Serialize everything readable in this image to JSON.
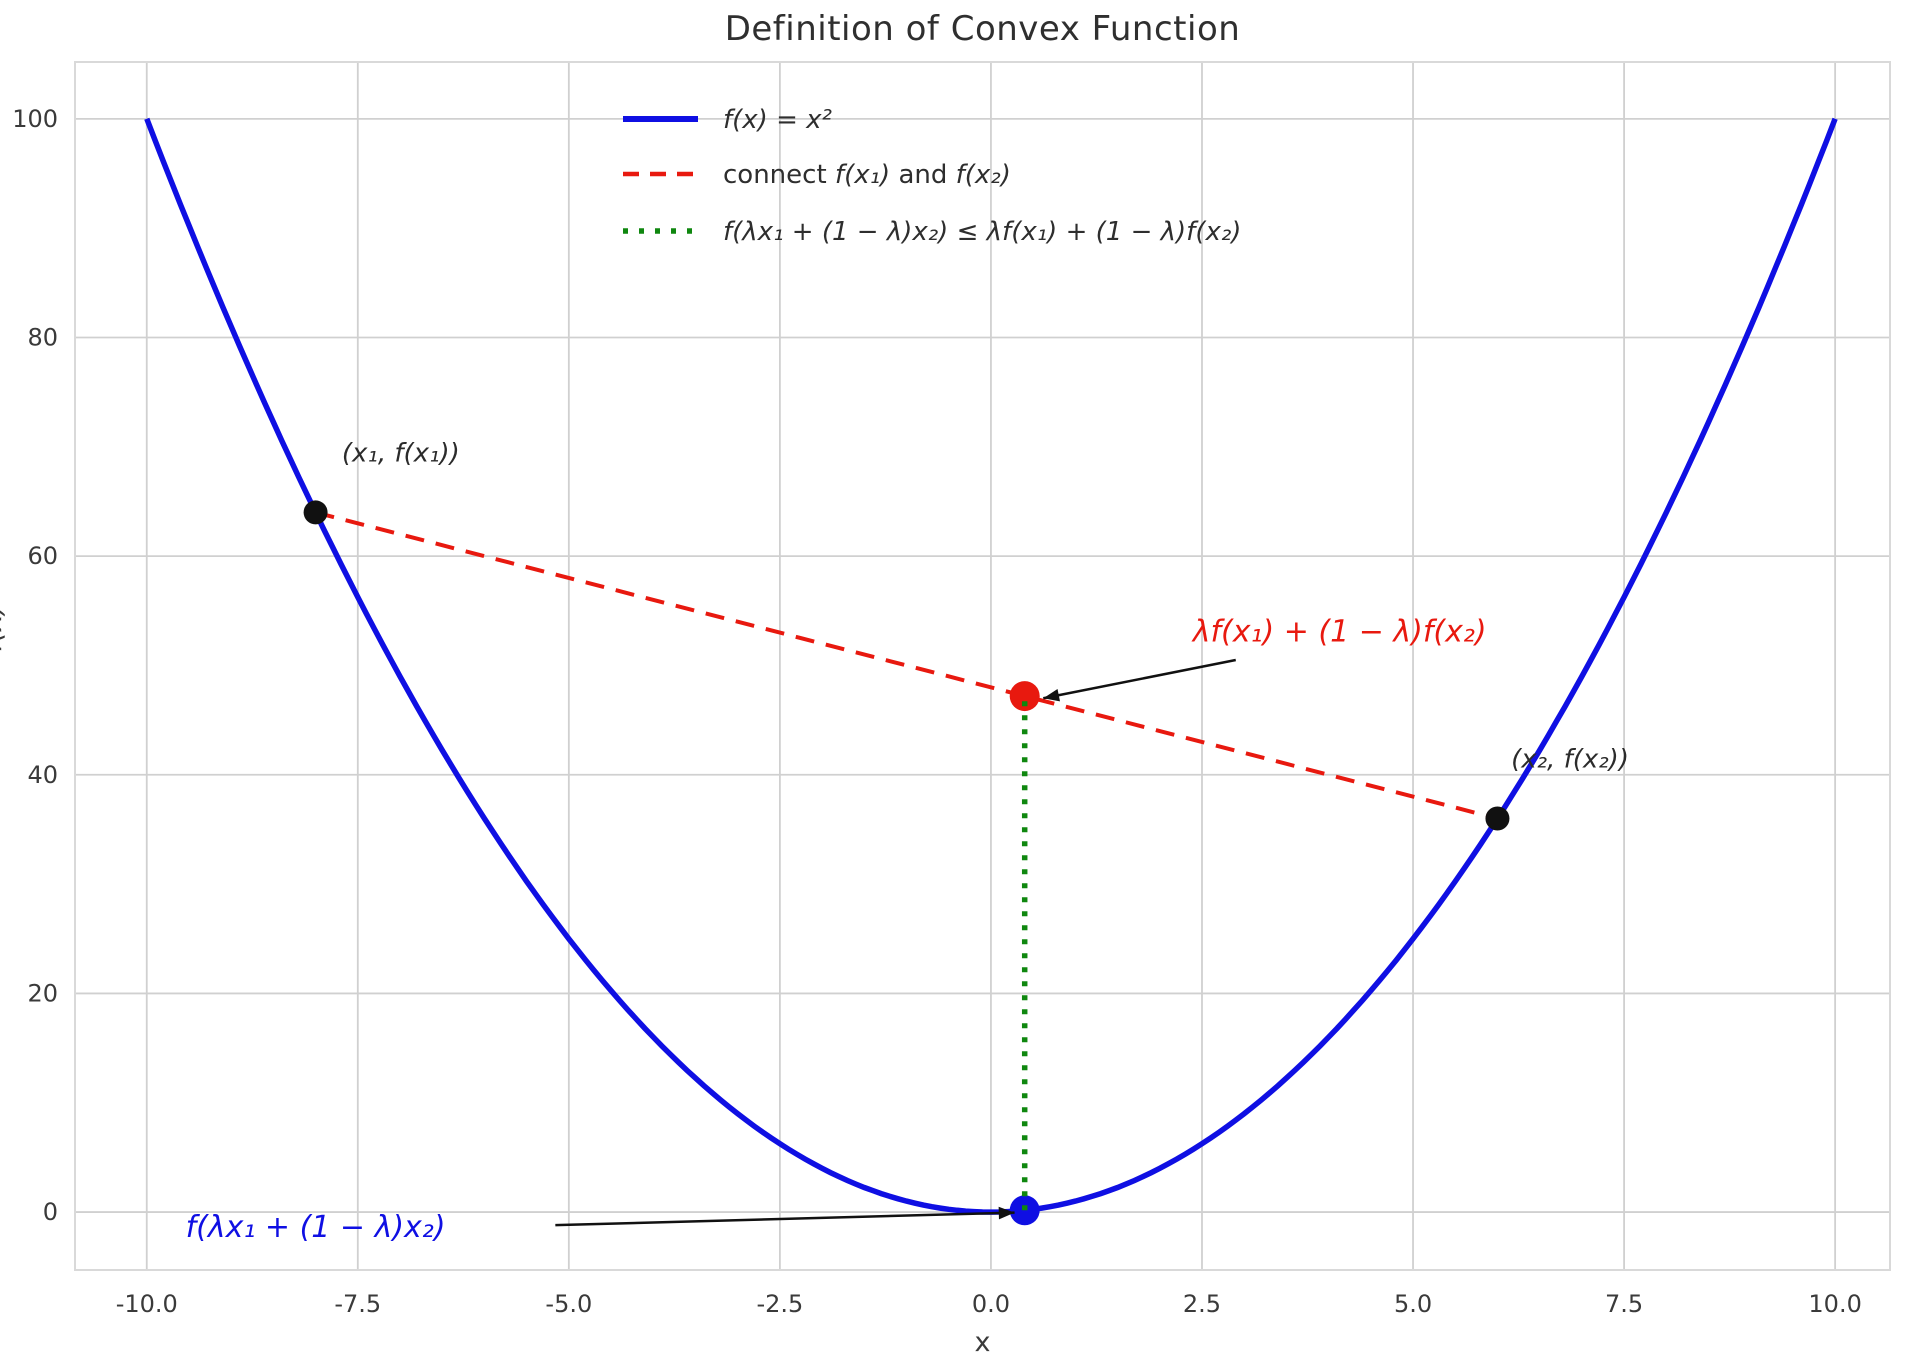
{
  "figure": {
    "title": "Definition of Convex Function",
    "bg_color": "#ffffff",
    "text_color": "#2e2e2e",
    "tick_color": "#3a3a3a",
    "grid_color": "#d0d0d0",
    "spine_color": "#d9d9d9",
    "arrow_color": "#111111"
  },
  "chart_data": {
    "type": "line",
    "title": "Definition of Convex Function",
    "xlabel": "x",
    "ylabel": "f(x)",
    "xlim": [
      -10.85,
      10.65
    ],
    "ylim": [
      -5.3,
      105.2
    ],
    "grid": true,
    "x_ticks": [
      "-10.0",
      "-7.5",
      "-5.0",
      "-2.5",
      "0.0",
      "2.5",
      "5.0",
      "7.5",
      "10.0"
    ],
    "x_tick_values": [
      -10,
      -7.5,
      -5,
      -2.5,
      0,
      2.5,
      5,
      7.5,
      10
    ],
    "y_ticks": [
      "0",
      "20",
      "40",
      "60",
      "80",
      "100"
    ],
    "y_tick_values": [
      0,
      20,
      40,
      60,
      80,
      100
    ],
    "legend_position": "upper center",
    "legend": [
      {
        "label": "f(x) = x²",
        "color": "#0f0fe3",
        "style": "solid"
      },
      {
        "label": "connect f(x₁) and f(x₂)",
        "color": "#e8190f",
        "style": "dashed"
      },
      {
        "label": "f(λx₁ + (1 − λ)x₂) ≤ λf(x₁) + (1 − λ)f(x₂)",
        "color": "#0f870f",
        "style": "dotted"
      }
    ],
    "series": [
      {
        "name": "parabola",
        "formula": "f(x) = x²",
        "x_min": -10,
        "x_max": 10,
        "color": "#0f0fe3",
        "style": "solid"
      },
      {
        "name": "chord",
        "points": [
          [
            -8,
            64
          ],
          [
            6,
            36
          ]
        ],
        "color": "#e8190f",
        "style": "dashed"
      },
      {
        "name": "convexity-gap",
        "points": [
          [
            0.4,
            0.16
          ],
          [
            0.4,
            47.2
          ]
        ],
        "color": "#0f870f",
        "style": "dotted"
      }
    ],
    "markers": [
      {
        "name": "point-x1",
        "x": -8,
        "y": 64,
        "color": "#111111"
      },
      {
        "name": "point-x2",
        "x": 6,
        "y": 36,
        "color": "#111111"
      },
      {
        "name": "point-on-chord",
        "x": 0.4,
        "y": 47.2,
        "color": "#e8190f"
      },
      {
        "name": "point-on-curve",
        "x": 0.4,
        "y": 0.16,
        "color": "#0f0fe3"
      }
    ],
    "annotations": [
      {
        "name": "label-x1",
        "text": "(x₁, f(x₁))",
        "x": -6.99,
        "y": 69.5,
        "color": "#2b2b2b",
        "anchor": "middle"
      },
      {
        "name": "label-x2",
        "text": "(x₂, f(x₂))",
        "x": 6.86,
        "y": 41.5,
        "color": "#2b2b2b",
        "anchor": "middle"
      },
      {
        "name": "label-chord-value",
        "text": "λf(x₁) + (1 − λ)f(x₂)",
        "x": 2.39,
        "y": 53.0,
        "color": "#e8190f",
        "anchor": "start",
        "arrow": {
          "from": [
            2.9,
            50.5
          ],
          "to": [
            0.62,
            47.0
          ]
        }
      },
      {
        "name": "label-curve-value",
        "text": "f(λx₁ + (1 − λ)x₂)",
        "x": -9.54,
        "y": -1.46,
        "color": "#0f0fe3",
        "anchor": "start",
        "arrow": {
          "from": [
            -5.16,
            -1.2
          ],
          "to": [
            0.28,
            -0.05
          ]
        }
      }
    ]
  }
}
